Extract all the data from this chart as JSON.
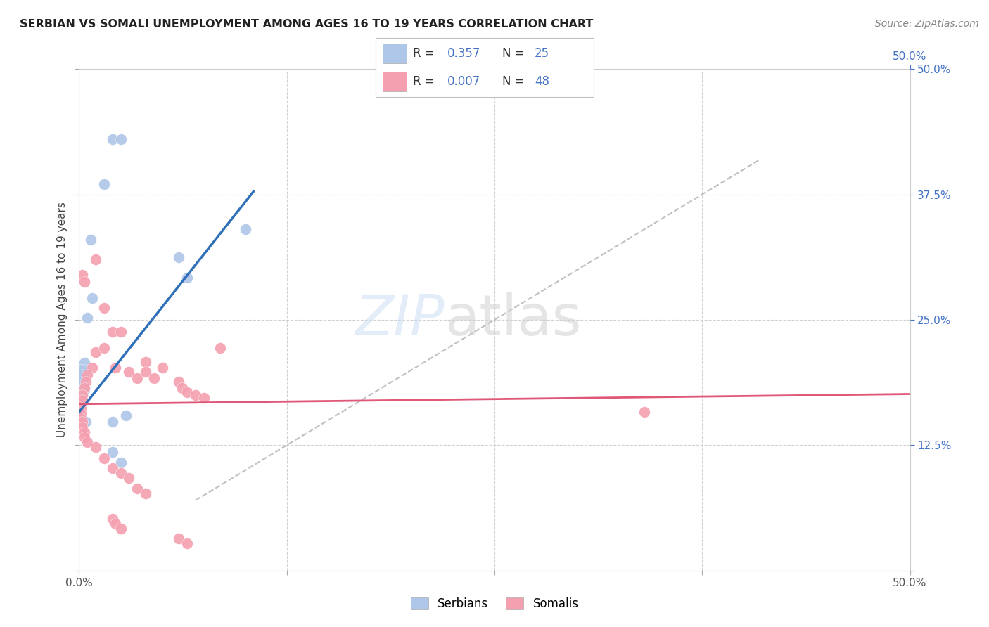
{
  "title": "SERBIAN VS SOMALI UNEMPLOYMENT AMONG AGES 16 TO 19 YEARS CORRELATION CHART",
  "source": "Source: ZipAtlas.com",
  "ylabel": "Unemployment Among Ages 16 to 19 years",
  "xlim": [
    0.0,
    0.5
  ],
  "ylim": [
    0.0,
    0.5
  ],
  "xticks": [
    0.0,
    0.125,
    0.25,
    0.375,
    0.5
  ],
  "yticks": [
    0.0,
    0.125,
    0.25,
    0.375,
    0.5
  ],
  "background_color": "#ffffff",
  "grid_color": "#cccccc",
  "serbian_color": "#aec6e8",
  "somali_color": "#f4a0b0",
  "serbian_line_color": "#3070b8",
  "somali_line_color": "#e05878",
  "diagonal_color": "#b0b0b0",
  "serbian_line": [
    [
      0.0,
      0.158
    ],
    [
      0.105,
      0.378
    ]
  ],
  "somali_line": [
    [
      0.0,
      0.166
    ],
    [
      0.5,
      0.176
    ]
  ],
  "diagonal_line": [
    [
      0.07,
      0.07
    ],
    [
      0.41,
      0.41
    ]
  ],
  "serbian_points": [
    [
      0.003,
      0.18
    ],
    [
      0.02,
      0.43
    ],
    [
      0.025,
      0.43
    ],
    [
      0.007,
      0.33
    ],
    [
      0.015,
      0.385
    ],
    [
      0.005,
      0.252
    ],
    [
      0.008,
      0.272
    ],
    [
      0.003,
      0.207
    ],
    [
      0.06,
      0.312
    ],
    [
      0.065,
      0.292
    ],
    [
      0.003,
      0.2
    ],
    [
      0.002,
      0.192
    ],
    [
      0.002,
      0.185
    ],
    [
      0.001,
      0.178
    ],
    [
      0.001,
      0.2
    ],
    [
      0.002,
      0.195
    ],
    [
      0.002,
      0.188
    ],
    [
      0.003,
      0.182
    ],
    [
      0.002,
      0.175
    ],
    [
      0.1,
      0.34
    ],
    [
      0.004,
      0.148
    ],
    [
      0.02,
      0.148
    ],
    [
      0.02,
      0.118
    ],
    [
      0.025,
      0.108
    ],
    [
      0.028,
      0.155
    ]
  ],
  "somali_points": [
    [
      0.002,
      0.295
    ],
    [
      0.003,
      0.288
    ],
    [
      0.01,
      0.31
    ],
    [
      0.015,
      0.262
    ],
    [
      0.008,
      0.202
    ],
    [
      0.005,
      0.195
    ],
    [
      0.004,
      0.188
    ],
    [
      0.003,
      0.182
    ],
    [
      0.002,
      0.175
    ],
    [
      0.002,
      0.17
    ],
    [
      0.001,
      0.162
    ],
    [
      0.001,
      0.157
    ],
    [
      0.001,
      0.152
    ],
    [
      0.002,
      0.148
    ],
    [
      0.002,
      0.143
    ],
    [
      0.003,
      0.138
    ],
    [
      0.003,
      0.133
    ],
    [
      0.005,
      0.128
    ],
    [
      0.01,
      0.123
    ],
    [
      0.01,
      0.218
    ],
    [
      0.015,
      0.222
    ],
    [
      0.02,
      0.238
    ],
    [
      0.022,
      0.202
    ],
    [
      0.025,
      0.238
    ],
    [
      0.03,
      0.198
    ],
    [
      0.035,
      0.192
    ],
    [
      0.04,
      0.208
    ],
    [
      0.04,
      0.198
    ],
    [
      0.045,
      0.192
    ],
    [
      0.05,
      0.202
    ],
    [
      0.06,
      0.188
    ],
    [
      0.062,
      0.182
    ],
    [
      0.065,
      0.178
    ],
    [
      0.07,
      0.175
    ],
    [
      0.075,
      0.172
    ],
    [
      0.015,
      0.112
    ],
    [
      0.02,
      0.102
    ],
    [
      0.025,
      0.097
    ],
    [
      0.03,
      0.092
    ],
    [
      0.035,
      0.082
    ],
    [
      0.04,
      0.077
    ],
    [
      0.02,
      0.052
    ],
    [
      0.022,
      0.047
    ],
    [
      0.025,
      0.042
    ],
    [
      0.06,
      0.032
    ],
    [
      0.065,
      0.027
    ],
    [
      0.34,
      0.158
    ],
    [
      0.085,
      0.222
    ]
  ]
}
